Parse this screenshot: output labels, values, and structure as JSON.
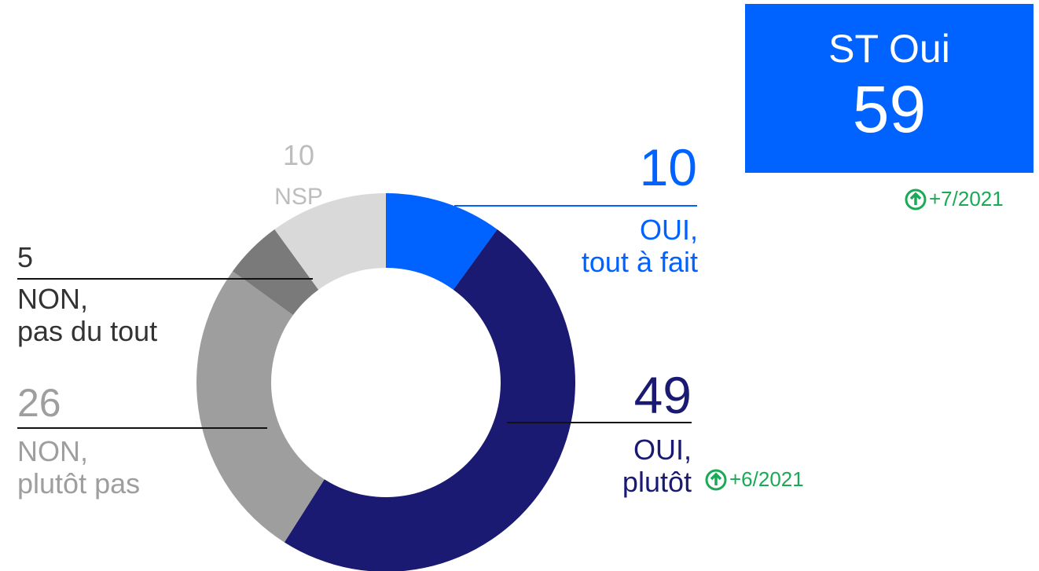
{
  "chart_data": {
    "type": "donut",
    "categories": [
      "OUI,\ntout à fait",
      "OUI,\nplutôt",
      "NON,\nplutôt pas",
      "NON,\npas du tout",
      "NSP"
    ],
    "values": [
      10,
      49,
      26,
      5,
      10
    ],
    "colors": [
      "#0062ff",
      "#1a1a72",
      "#9e9e9e",
      "#7a7a7a",
      "#d9d9d9"
    ]
  },
  "summary": {
    "label": "ST Oui",
    "value": 59
  },
  "annotations": [
    "+7/2021",
    "+6/2021"
  ]
}
